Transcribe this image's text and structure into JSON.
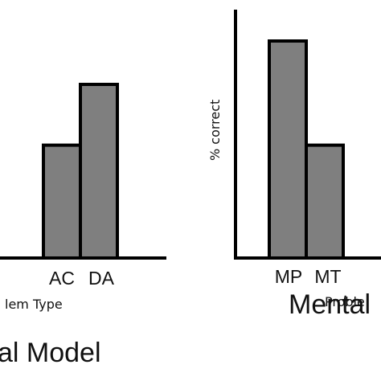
{
  "chart_data": [
    {
      "type": "bar",
      "categories": [
        "AC",
        "DA"
      ],
      "values": [
        52,
        80
      ],
      "ylim": [
        0,
        100
      ],
      "xlabel": "lem Type",
      "ylabel": "",
      "caption": "al Model",
      "bar_color": "#7f7f7f",
      "grid": false,
      "legend": "none"
    },
    {
      "type": "bar",
      "categories": [
        "MP",
        "MT"
      ],
      "values": [
        100,
        52
      ],
      "ylim": [
        0,
        100
      ],
      "xlabel": "Proble",
      "ylabel": "% correct",
      "caption": "Mental",
      "bar_color": "#7f7f7f",
      "grid": false,
      "legend": "none"
    }
  ]
}
